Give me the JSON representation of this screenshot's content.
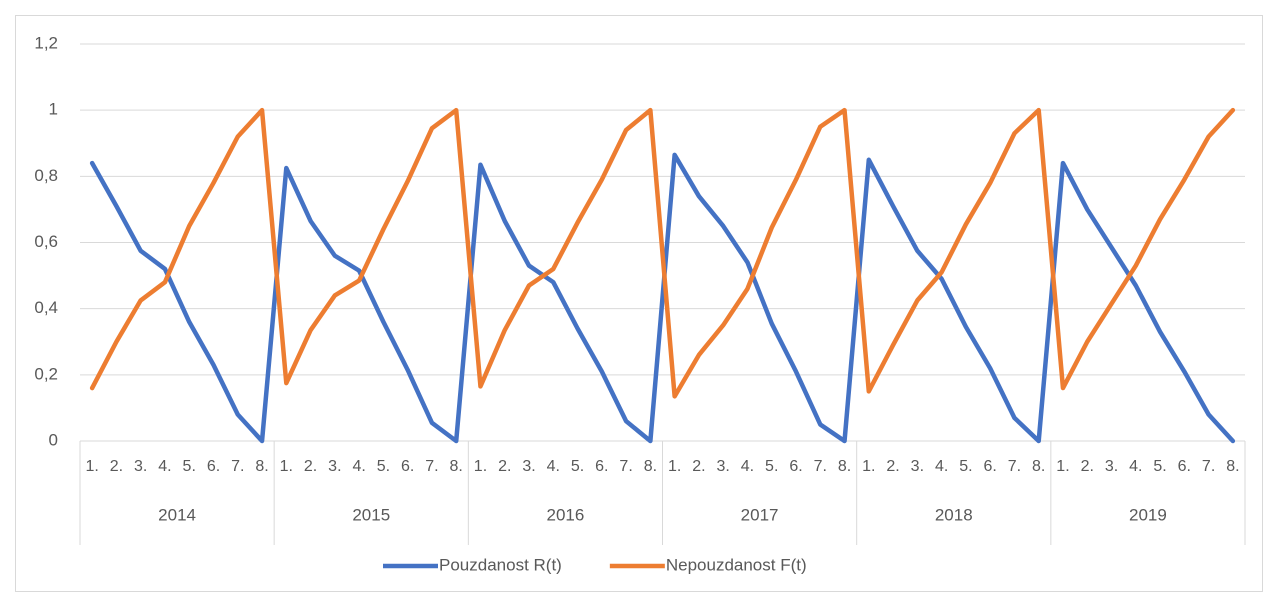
{
  "chart_data": {
    "type": "line",
    "categories": [
      "1.",
      "2.",
      "3.",
      "4.",
      "5.",
      "6.",
      "7.",
      "8.",
      "1.",
      "2.",
      "3.",
      "4.",
      "5.",
      "6.",
      "7.",
      "8.",
      "1.",
      "2.",
      "3.",
      "4.",
      "5.",
      "6.",
      "7.",
      "8.",
      "1.",
      "2.",
      "3.",
      "4.",
      "5.",
      "6.",
      "7.",
      "8.",
      "1.",
      "2.",
      "3.",
      "4.",
      "5.",
      "6.",
      "7.",
      "8.",
      "1.",
      "2.",
      "3.",
      "4.",
      "5.",
      "6.",
      "7.",
      "8."
    ],
    "groups": [
      "2014",
      "2015",
      "2016",
      "2017",
      "2018",
      "2019"
    ],
    "series": [
      {
        "name": "Pouzdanost R(t)",
        "color": "#4472c4",
        "values": [
          0.84,
          0.71,
          0.575,
          0.52,
          0.36,
          0.23,
          0.08,
          0,
          0.825,
          0.665,
          0.56,
          0.515,
          0.36,
          0.215,
          0.055,
          0,
          0.835,
          0.665,
          0.53,
          0.48,
          0.34,
          0.21,
          0.06,
          0,
          0.865,
          0.74,
          0.65,
          0.54,
          0.355,
          0.21,
          0.05,
          0,
          0.85,
          0.71,
          0.575,
          0.49,
          0.345,
          0.22,
          0.07,
          0,
          0.84,
          0.7,
          0.585,
          0.47,
          0.33,
          0.21,
          0.08,
          0
        ]
      },
      {
        "name": "Nepouzdanost F(t)",
        "color": "#ed7d31",
        "values": [
          0.16,
          0.3,
          0.425,
          0.48,
          0.65,
          0.78,
          0.92,
          1,
          0.175,
          0.335,
          0.44,
          0.485,
          0.64,
          0.785,
          0.945,
          1,
          0.165,
          0.335,
          0.47,
          0.52,
          0.66,
          0.79,
          0.94,
          1,
          0.135,
          0.26,
          0.35,
          0.46,
          0.645,
          0.79,
          0.95,
          1,
          0.15,
          0.29,
          0.425,
          0.51,
          0.655,
          0.78,
          0.93,
          1,
          0.16,
          0.3,
          0.415,
          0.53,
          0.67,
          0.79,
          0.92,
          1
        ]
      }
    ],
    "ylim": [
      0,
      1.2
    ],
    "yticks": [
      0,
      {
        "value": 0.2,
        "label": "0,2"
      },
      {
        "value": 0.4,
        "label": "0,4"
      },
      {
        "value": 0.6,
        "label": "0,6"
      },
      {
        "value": 0.8,
        "label": "0,8"
      },
      1,
      {
        "value": 1.2,
        "label": "1,2"
      }
    ],
    "grid": true,
    "legend": "bottom"
  }
}
